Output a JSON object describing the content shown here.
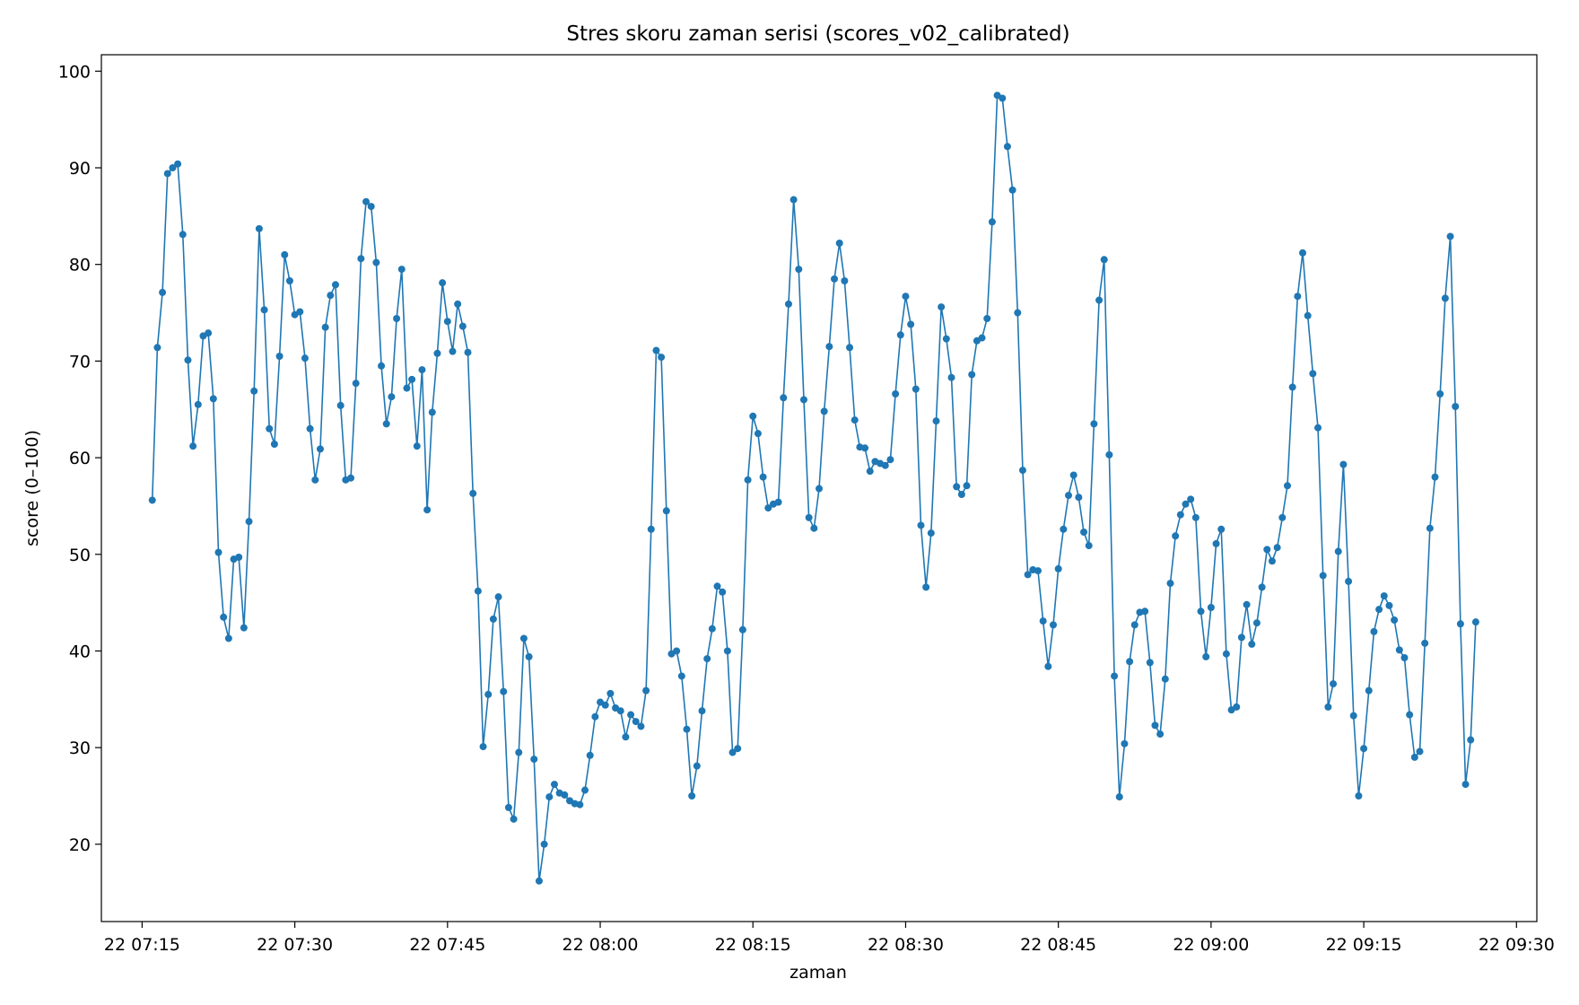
{
  "chart_data": {
    "type": "line",
    "title": "Stres skoru zaman serisi (scores_v02_calibrated)",
    "xlabel": "zaman",
    "ylabel": "score (0–100)",
    "x_start": "2023-01-22 07:16",
    "x_step_minutes": 0.5,
    "x_tick_labels": [
      "22 07:15",
      "22 07:30",
      "22 07:45",
      "22 08:00",
      "22 08:15",
      "22 08:30",
      "22 08:45",
      "22 09:00",
      "22 09:15",
      "22 09:30"
    ],
    "xlim": [
      "2023-01-22 07:11",
      "2023-01-22 09:32"
    ],
    "y_ticks": [
      20,
      30,
      40,
      50,
      60,
      70,
      80,
      90,
      100
    ],
    "ylim": [
      12,
      101.7
    ],
    "grid": false,
    "legend": "none",
    "series": [
      {
        "color": "#1f77b4",
        "marker": "circle",
        "values": [
          55.6,
          71.4,
          77.1,
          89.4,
          90.0,
          90.4,
          83.1,
          70.1,
          61.2,
          65.5,
          72.6,
          72.9,
          66.1,
          50.2,
          43.5,
          41.3,
          49.5,
          49.7,
          42.4,
          53.4,
          66.9,
          83.7,
          75.3,
          63.0,
          61.4,
          70.5,
          81.0,
          78.3,
          74.8,
          75.1,
          70.3,
          63.0,
          57.7,
          60.9,
          73.5,
          76.8,
          77.9,
          65.4,
          57.7,
          57.9,
          67.7,
          80.6,
          86.5,
          86.0,
          80.2,
          69.5,
          63.5,
          66.3,
          74.4,
          79.5,
          67.2,
          68.1,
          61.2,
          69.1,
          54.6,
          64.7,
          70.8,
          78.1,
          74.1,
          71.0,
          75.9,
          73.6,
          70.9,
          56.3,
          46.2,
          30.1,
          35.5,
          43.3,
          45.6,
          35.8,
          23.8,
          22.6,
          29.5,
          41.3,
          39.4,
          28.8,
          16.2,
          20.0,
          24.9,
          26.2,
          25.3,
          25.1,
          24.5,
          24.2,
          24.1,
          25.6,
          29.2,
          33.2,
          34.7,
          34.4,
          35.6,
          34.1,
          33.8,
          31.1,
          33.4,
          32.7,
          32.2,
          35.9,
          52.6,
          71.1,
          70.4,
          54.5,
          39.7,
          40.0,
          37.4,
          31.9,
          25.0,
          28.1,
          33.8,
          39.2,
          42.3,
          46.7,
          46.1,
          40.0,
          29.5,
          29.9,
          42.2,
          57.7,
          64.3,
          62.5,
          58.0,
          54.8,
          55.2,
          55.4,
          66.2,
          75.9,
          86.7,
          79.5,
          66.0,
          53.8,
          52.7,
          56.8,
          64.8,
          71.5,
          78.5,
          82.2,
          78.3,
          71.4,
          63.9,
          61.1,
          61.0,
          58.6,
          59.6,
          59.4,
          59.2,
          59.8,
          66.6,
          72.7,
          76.7,
          73.8,
          67.1,
          53.0,
          46.6,
          52.2,
          63.8,
          75.6,
          72.3,
          68.3,
          57.0,
          56.2,
          57.1,
          68.6,
          72.1,
          72.4,
          74.4,
          84.4,
          97.5,
          97.2,
          92.2,
          87.7,
          75.0,
          58.7,
          47.9,
          48.4,
          48.3,
          43.1,
          38.4,
          42.7,
          48.5,
          52.6,
          56.1,
          58.2,
          55.9,
          52.3,
          50.9,
          63.5,
          76.3,
          80.5,
          60.3,
          37.4,
          24.9,
          30.4,
          38.9,
          42.7,
          44.0,
          44.1,
          38.8,
          32.3,
          31.4,
          37.1,
          47.0,
          51.9,
          54.1,
          55.2,
          55.7,
          53.8,
          44.1,
          39.4,
          44.5,
          51.1,
          52.6,
          39.7,
          33.9,
          34.2,
          41.4,
          44.8,
          40.7,
          42.9,
          46.6,
          50.5,
          49.3,
          50.7,
          53.8,
          57.1,
          67.3,
          76.7,
          81.2,
          74.7,
          68.7,
          63.1,
          47.8,
          34.2,
          36.6,
          50.3,
          59.3,
          47.2,
          33.3,
          25.0,
          29.9,
          35.9,
          42.0,
          44.3,
          45.7,
          44.7,
          43.2,
          40.1,
          39.3,
          33.4,
          29.0,
          29.6,
          40.8,
          52.7,
          58.0,
          66.6,
          76.5,
          82.9,
          65.3,
          42.8,
          26.2,
          30.8,
          43.0
        ]
      }
    ]
  }
}
